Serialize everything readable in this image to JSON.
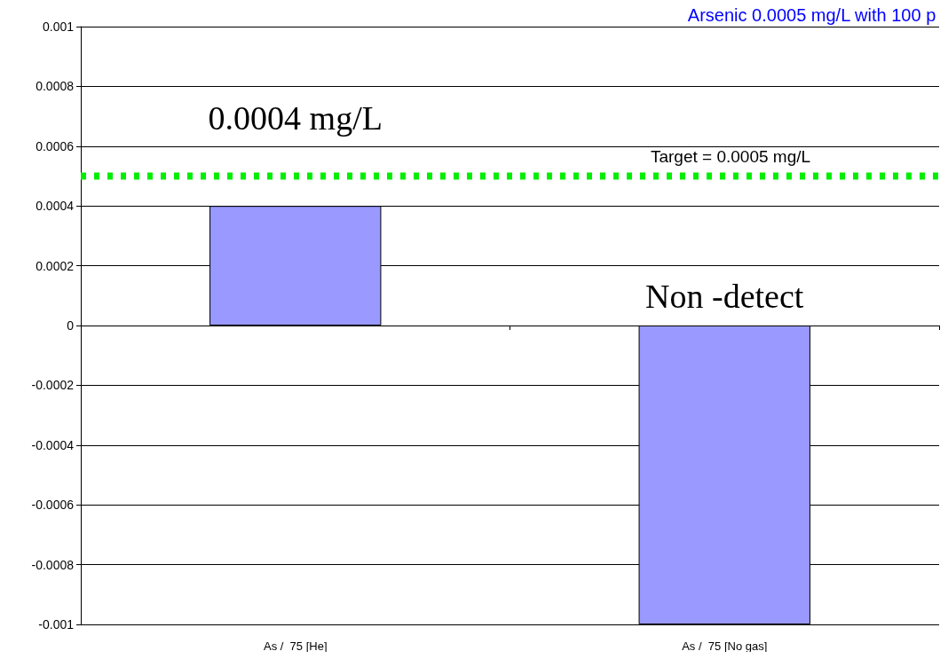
{
  "chart_data": {
    "type": "bar",
    "title": "Arsenic 0.0005 mg/L with 100 p",
    "categories": [
      "As /  75 [He]",
      "As /  75 [No gas]"
    ],
    "values": [
      0.0004,
      -0.001
    ],
    "value_labels": [
      "0.0004 mg/L",
      "Non -detect"
    ],
    "color": "#9999ff",
    "ylim": [
      -0.001,
      0.001
    ],
    "yticks": [
      -0.001,
      -0.0008,
      -0.0006,
      -0.0004,
      -0.0002,
      0,
      0.0002,
      0.0004,
      0.0006,
      0.0008,
      0.001
    ],
    "grid": "y",
    "ref_lines": [
      {
        "axis": "y",
        "value": 0.0005,
        "label": "Target = 0.0005 mg/L",
        "color": "#00ee00",
        "line_style": "dotted"
      }
    ]
  }
}
